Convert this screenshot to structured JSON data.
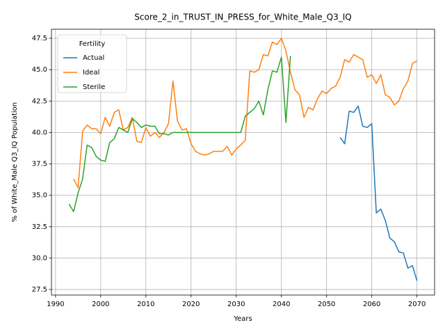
{
  "chart_data": {
    "type": "line",
    "title": "Score_2_in_TRUST_IN_PRESS_for_White_Male_Q3_IQ",
    "xlabel": "Years",
    "ylabel": "% of White_Male Q3_IQ Population",
    "legend_title": "Fertility",
    "legend": "upper left",
    "grid": true,
    "xlim": [
      1989.1,
      2073.9
    ],
    "ylim": [
      27.06,
      48.22
    ],
    "xticks": [
      1990,
      2000,
      2010,
      2020,
      2030,
      2040,
      2050,
      2060,
      2070
    ],
    "yticks": [
      27.5,
      {
        "value": 30,
        "label": "30.0"
      },
      32.5,
      {
        "value": 35,
        "label": "35.0"
      },
      37.5,
      {
        "value": 40,
        "label": "40.0"
      },
      42.5,
      {
        "value": 45,
        "label": "45.0"
      },
      47.5
    ],
    "series": [
      {
        "name": "Actual",
        "color": "#1f77b4",
        "x": [
          2053,
          2054,
          2055,
          2056,
          2057,
          2058,
          2059,
          2060,
          2061,
          2062,
          2063,
          2064,
          2065,
          2066,
          2067,
          2068,
          2069,
          2070
        ],
        "values": [
          39.6,
          39.1,
          41.7,
          41.6,
          42.1,
          40.5,
          40.4,
          40.7,
          33.6,
          33.9,
          33.0,
          31.6,
          31.3,
          30.5,
          30.4,
          29.2,
          29.4,
          28.2
        ]
      },
      {
        "name": "Ideal",
        "color": "#ff7f0e",
        "x": [
          1994,
          1995,
          1996,
          1997,
          1998,
          1999,
          2000,
          2001,
          2002,
          2003,
          2004,
          2005,
          2006,
          2007,
          2008,
          2009,
          2010,
          2011,
          2012,
          2013,
          2014,
          2015,
          2016,
          2017,
          2018,
          2019,
          2020,
          2021,
          2022,
          2023,
          2024,
          2025,
          2026,
          2027,
          2028,
          2029,
          2030,
          2031,
          2032,
          2033,
          2034,
          2035,
          2036,
          2037,
          2038,
          2039,
          2040,
          2041,
          2042,
          2043,
          2044,
          2045,
          2046,
          2047,
          2048,
          2049,
          2050,
          2051,
          2052,
          2053,
          2054,
          2055,
          2056,
          2057,
          2058,
          2059,
          2060,
          2061,
          2062,
          2063,
          2064,
          2065,
          2066,
          2067,
          2068,
          2069,
          2070
        ],
        "values": [
          36.3,
          35.6,
          40.1,
          40.6,
          40.3,
          40.3,
          39.9,
          41.2,
          40.5,
          41.6,
          41.8,
          40.2,
          40.4,
          41.2,
          39.3,
          39.2,
          40.4,
          39.7,
          40.0,
          39.6,
          40.0,
          40.7,
          44.1,
          40.9,
          40.2,
          40.3,
          39.1,
          38.5,
          38.3,
          38.2,
          38.3,
          38.5,
          38.5,
          38.5,
          38.9,
          38.2,
          38.7,
          39.0,
          39.4,
          44.9,
          44.8,
          45.0,
          46.2,
          46.1,
          47.2,
          47.0,
          47.5,
          46.5,
          44.8,
          43.4,
          43.0,
          41.2,
          42.0,
          41.8,
          42.7,
          43.3,
          43.1,
          43.5,
          43.7,
          44.4,
          45.8,
          45.6,
          46.2,
          46.0,
          45.8,
          44.4,
          44.6,
          43.9,
          44.6,
          43.0,
          42.8,
          42.2,
          42.5,
          43.5,
          44.1,
          45.5,
          45.7
        ]
      },
      {
        "name": "Sterile",
        "color": "#2ca02c",
        "x": [
          1993,
          1994,
          1995,
          1996,
          1997,
          1998,
          1999,
          2000,
          2001,
          2002,
          2003,
          2004,
          2005,
          2006,
          2007,
          2008,
          2009,
          2010,
          2011,
          2012,
          2013,
          2014,
          2015,
          2016,
          2017,
          2018,
          2019,
          2020,
          2021,
          2022,
          2023,
          2024,
          2025,
          2026,
          2027,
          2028,
          2029,
          2030,
          2031,
          2032,
          2033,
          2034,
          2035,
          2036,
          2037,
          2038,
          2039,
          2040,
          2041,
          2042
        ],
        "values": [
          34.3,
          33.7,
          35.2,
          36.3,
          39.0,
          38.8,
          38.1,
          37.8,
          37.7,
          39.2,
          39.5,
          40.4,
          40.2,
          40.0,
          41.1,
          40.8,
          40.4,
          40.6,
          40.5,
          40.5,
          39.9,
          39.9,
          39.8,
          40.0,
          40.0,
          40.0,
          40.0,
          40.0,
          40.0,
          40.0,
          40.0,
          40.0,
          40.0,
          40.0,
          40.0,
          40.0,
          40.0,
          40.0,
          40.0,
          41.3,
          41.6,
          41.9,
          42.5,
          41.4,
          43.4,
          44.9,
          44.8,
          46.0,
          40.8,
          46.1
        ]
      }
    ]
  }
}
